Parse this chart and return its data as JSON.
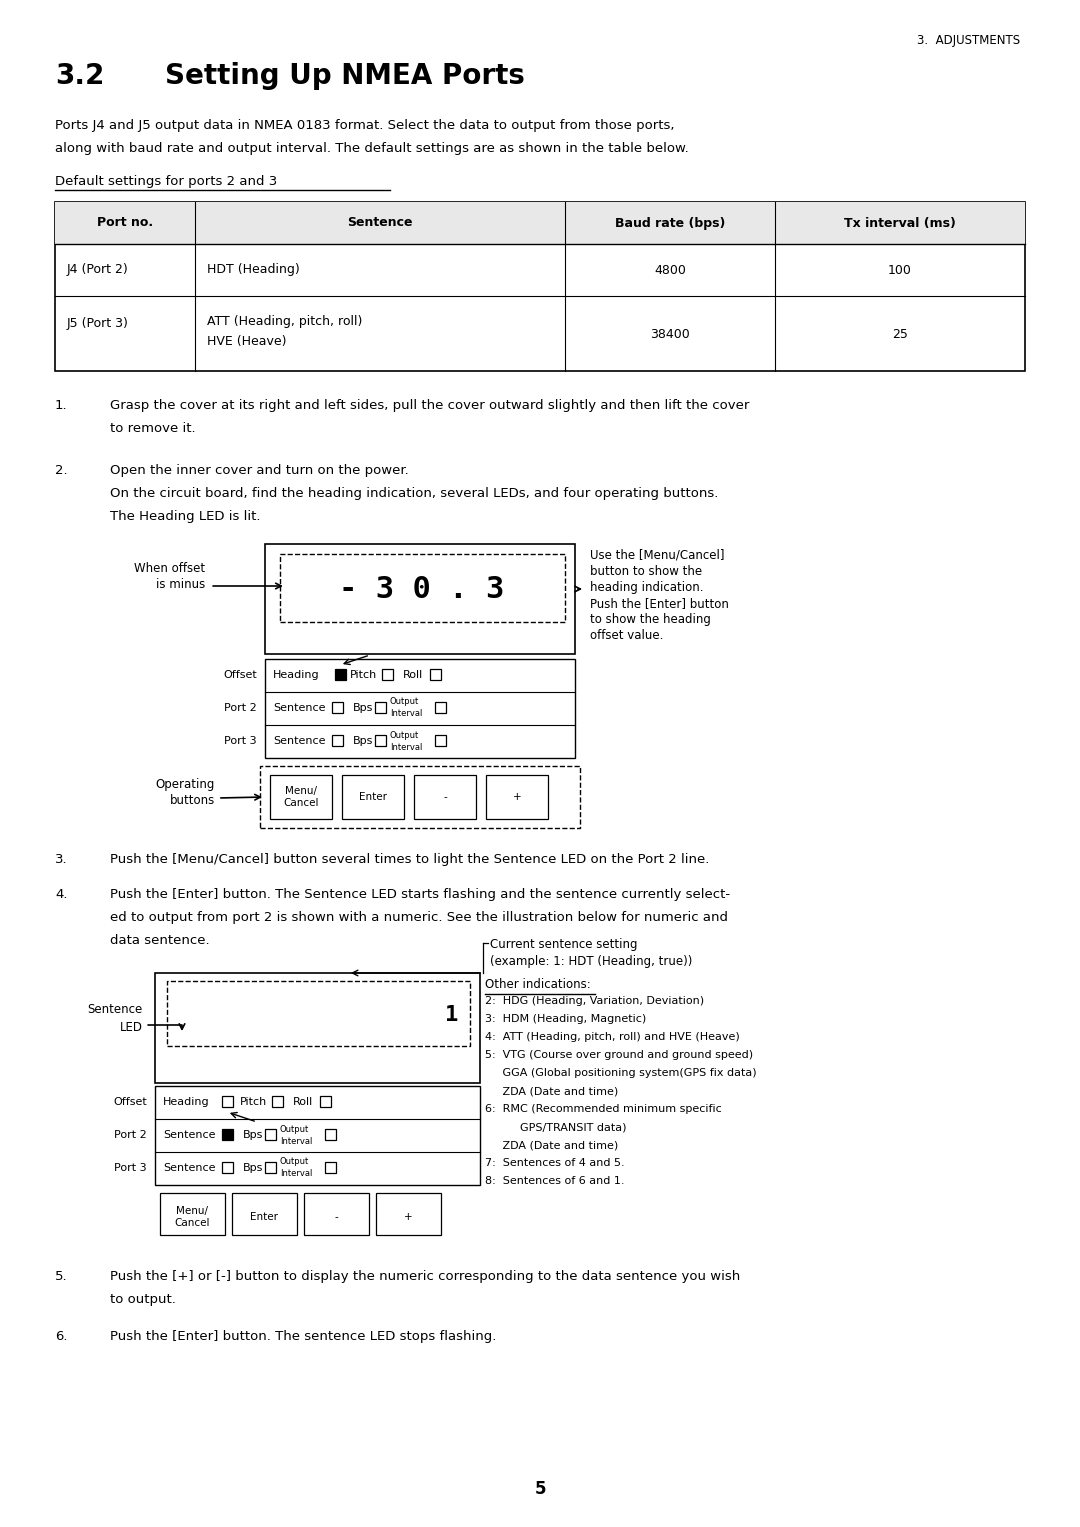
{
  "page_num": "5",
  "section_header": "3.  ADJUSTMENTS",
  "section_title_num": "3.2",
  "section_title_text": "Setting Up NMEA Ports",
  "intro_line1": "Ports J4 and J5 output data in NMEA 0183 format. Select the data to output from those ports,",
  "intro_line2": "along with baud rate and output interval. The default settings are as shown in the table below.",
  "default_label": "Default settings for ports 2 and 3",
  "table_headers": [
    "Port no.",
    "Sentence",
    "Baud rate (bps)",
    "Tx interval (ms)"
  ],
  "table_row1": [
    "J4 (Port 2)",
    "HDT (Heading)",
    "4800",
    "100"
  ],
  "table_row2_col0": "J5 (Port 3)",
  "table_row2_col1a": "ATT (Heading, pitch, roll)",
  "table_row2_col1b": "HVE (Heave)",
  "table_row2_col2": "38400",
  "table_row2_col3": "25",
  "step1_num": "1.",
  "step1_line1": "Grasp the cover at its right and left sides, pull the cover outward slightly and then lift the cover",
  "step1_line2": "to remove it.",
  "step2_num": "2.",
  "step2_line1": "Open the inner cover and turn on the power.",
  "step2_line2": "On the circuit board, find the heading indication, several LEDs, and four operating buttons.",
  "step2_line3": "The Heading LED is lit.",
  "diag1_when_offset": "When offset",
  "diag1_is_minus": "is minus",
  "diag1_display_text": "- 3 0 . 3",
  "diag1_right_line1": "Use the [Menu/Cancel]",
  "diag1_right_line2": "button to show the",
  "diag1_right_line3": "heading indication.",
  "diag1_right_line4": "Push the [Enter] button",
  "diag1_right_line5": "to show the heading",
  "diag1_right_line6": "offset value.",
  "diag1_offset": "Offset",
  "diag1_port2": "Port 2",
  "diag1_port3": "Port 3",
  "diag1_operating": "Operating",
  "diag1_buttons": "buttons",
  "step3_num": "3.",
  "step3_text": "Push the [Menu/Cancel] button several times to light the Sentence LED on the Port 2 line.",
  "step4_num": "4.",
  "step4_line1": "Push the [Enter] button. The Sentence LED starts flashing and the sentence currently select-",
  "step4_line2": "ed to output from port 2 is shown with a numeric. See the illustration below for numeric and",
  "step4_line3": "data sentence.",
  "diag2_sentence": "Sentence",
  "diag2_led": "LED",
  "diag2_current_line1": "Current sentence setting",
  "diag2_current_line2": "(example: 1: HDT (Heading, true))",
  "diag2_other": "Other indications:",
  "diag2_ind": [
    "2:  HDG (Heading, Variation, Deviation)",
    "3:  HDM (Heading, Magnetic)",
    "4:  ATT (Heading, pitch, roll) and HVE (Heave)",
    "5:  VTG (Course over ground and ground speed)",
    "     GGA (Global positioning system(GPS fix data)",
    "     ZDA (Date and time)",
    "6:  RMC (Recommended minimum specific",
    "          GPS/TRANSIT data)",
    "     ZDA (Date and time)",
    "7:  Sentences of 4 and 5.",
    "8:  Sentences of 6 and 1."
  ],
  "step5_num": "5.",
  "step5_line1": "Push the [+] or [-] button to display the numeric corresponding to the data sentence you wish",
  "step5_line2": "to output.",
  "step6_num": "6.",
  "step6_text": "Push the [Enter] button. The sentence LED stops flashing."
}
